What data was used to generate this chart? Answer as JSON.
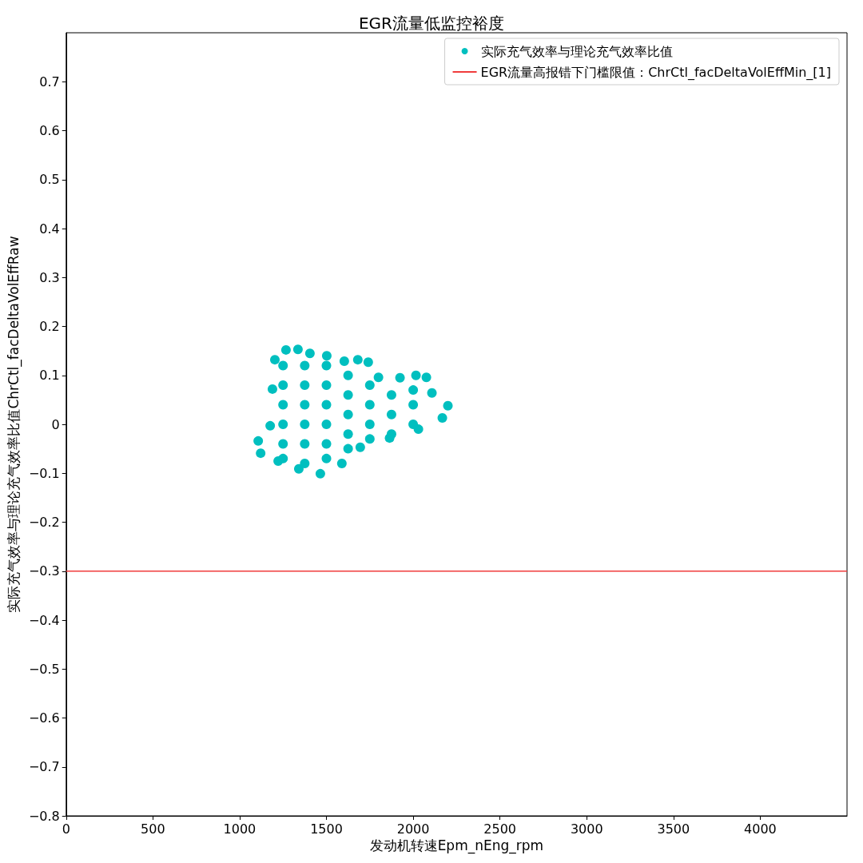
{
  "chart_data": {
    "type": "scatter",
    "title": "EGR流量低监控裕度",
    "xlabel": "发动机转速Epm_nEng_rpm",
    "ylabel": "实际充气效率与理论充气效率比值ChrCtl_facDeltaVolEffRaw",
    "xlim": [
      0,
      4500
    ],
    "xticks": [
      0,
      500,
      1000,
      1500,
      2000,
      2500,
      3000,
      3500,
      4000
    ],
    "ylim": [
      -0.8,
      0.8
    ],
    "yticks": [
      -0.8,
      -0.7,
      -0.6,
      -0.5,
      -0.4,
      -0.3,
      -0.2,
      -0.1,
      0.0,
      0.1,
      0.2,
      0.3,
      0.4,
      0.5,
      0.6,
      0.7
    ],
    "grid": false,
    "legend": "top right",
    "marker": "circle",
    "series": [
      {
        "name": "实际充气效率与理论充气效率比值",
        "color": "#00bfbf",
        "x": [
          1203,
          1267,
          1336,
          1405,
          1502,
          1603,
          1681,
          1741,
          1800,
          1924,
          2016,
          2076,
          2108,
          2200,
          2168,
          2030,
          1864,
          1695,
          1589,
          1465,
          1341,
          1222,
          1121,
          1107,
          1176,
          1189,
          1250,
          1250,
          1250,
          1250,
          1250,
          1250,
          1375,
          1375,
          1375,
          1375,
          1375,
          1375,
          1500,
          1500,
          1500,
          1500,
          1500,
          1500,
          1625,
          1625,
          1625,
          1625,
          1625,
          1750,
          1750,
          1750,
          1750,
          1875,
          1875,
          1875,
          2000,
          2000,
          2000
        ],
        "values": [
          0.132,
          0.152,
          0.153,
          0.145,
          0.14,
          0.129,
          0.132,
          0.127,
          0.096,
          0.095,
          0.1,
          0.096,
          0.064,
          0.038,
          0.013,
          -0.01,
          -0.028,
          -0.047,
          -0.08,
          -0.101,
          -0.091,
          -0.075,
          -0.059,
          -0.034,
          -0.003,
          0.072,
          -0.07,
          -0.04,
          0,
          0.04,
          0.08,
          0.12,
          -0.08,
          -0.04,
          0,
          0.04,
          0.08,
          0.12,
          -0.07,
          -0.04,
          0,
          0.04,
          0.08,
          0.12,
          -0.05,
          -0.02,
          0.02,
          0.06,
          0.1,
          -0.03,
          0,
          0.04,
          0.08,
          -0.02,
          0.02,
          0.06,
          0,
          0.04,
          0.07
        ]
      }
    ],
    "ref_lines": [
      {
        "axis": "y",
        "value": -0.3,
        "label": "EGR流量高报错下门槛限值：ChrCtl_facDeltaVolEffMin_[1]",
        "color": "#f03c3c",
        "line_style": "solid"
      }
    ]
  }
}
